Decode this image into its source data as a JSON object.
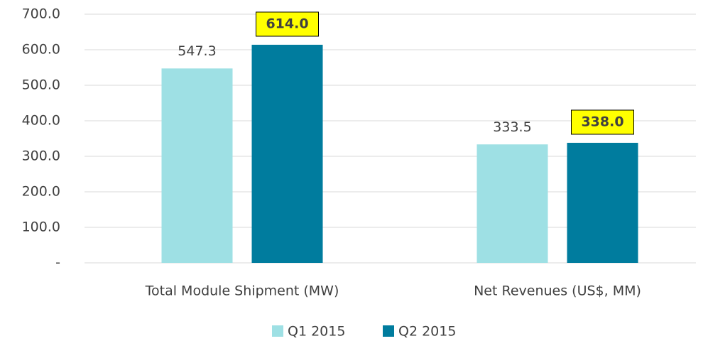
{
  "chart_data": {
    "type": "bar",
    "categories": [
      "Total Module Shipment (MW)",
      "Net Revenues (US$, MM)"
    ],
    "series": [
      {
        "name": "Q1 2015",
        "color": "#9ee0e4",
        "values": [
          547.3,
          333.5
        ]
      },
      {
        "name": "Q2 2015",
        "color": "#007c9e",
        "values": [
          614,
          338
        ],
        "value_labels": [
          "614.0",
          "338.0"
        ],
        "label_box_color": "#ffff00"
      }
    ],
    "ylim": [
      0,
      700
    ],
    "yticks": [
      {
        "value": 0,
        "label": "-"
      },
      {
        "value": 100,
        "label": "100.0"
      },
      {
        "value": 200,
        "label": "200.0"
      },
      {
        "value": 300,
        "label": "300.0"
      },
      {
        "value": 400,
        "label": "400.0"
      },
      {
        "value": 500,
        "label": "500.0"
      },
      {
        "value": 600,
        "label": "600.0"
      },
      {
        "value": 700,
        "label": "700.0"
      }
    ],
    "grid": true,
    "legend": "bottom"
  }
}
